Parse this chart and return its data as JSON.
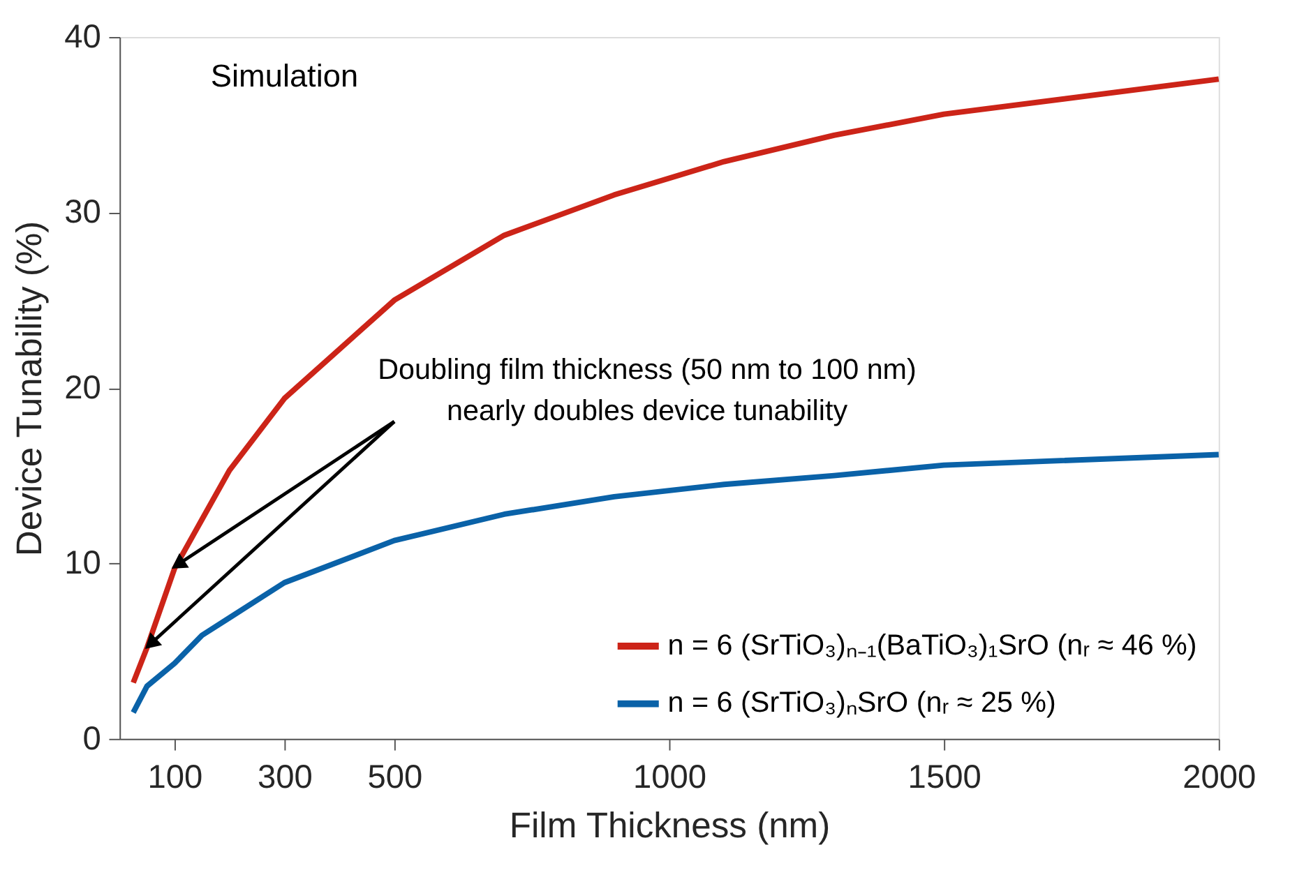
{
  "chart_data": {
    "type": "line",
    "xlabel": "Film Thickness (nm)",
    "ylabel": "Device Tunability (%)",
    "x": [
      25,
      50,
      100,
      150,
      200,
      300,
      500,
      700,
      900,
      1100,
      1300,
      1500,
      2000
    ],
    "series": [
      {
        "name": "n = 6 (SrTiO₃)ₙ₋₁(BaTiO₃)₁SrO (nᵣ ≈ 46 %)",
        "color": "#cc2418",
        "values": [
          3.2,
          5.2,
          9.7,
          12.5,
          15.3,
          19.4,
          25.0,
          28.7,
          31.0,
          32.9,
          34.4,
          35.6,
          37.6
        ]
      },
      {
        "name": "n = 6 (SrTiO₃)ₙSrO (nᵣ ≈ 25 %)",
        "color": "#0a62a8",
        "values": [
          1.5,
          3.0,
          4.3,
          5.9,
          6.9,
          8.9,
          11.3,
          12.8,
          13.8,
          14.5,
          15.0,
          15.6,
          16.2
        ]
      }
    ],
    "xlim": [
      0,
      2000
    ],
    "xticks": [
      100,
      300,
      500,
      1000,
      1500,
      2000
    ],
    "ylim": [
      0,
      40
    ],
    "yticks": [
      0,
      10,
      20,
      30,
      40
    ],
    "grid": false,
    "legend": "bottom right",
    "marker": "none",
    "line_style": "solid",
    "annotations": [
      "Simulation",
      {
        "text": "Doubling film thickness (50 nm to 100 nm)\nnearly doubles device tunability",
        "x": 100,
        "y": 9.7
      }
    ]
  }
}
